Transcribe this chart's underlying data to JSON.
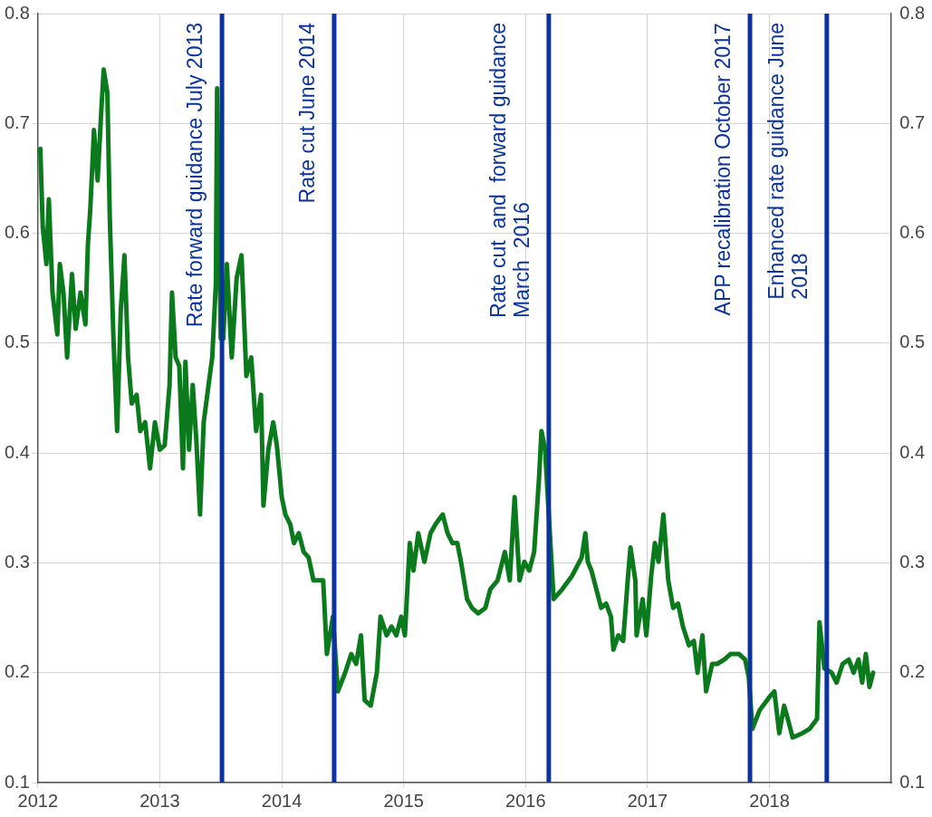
{
  "chart_data": {
    "type": "line",
    "x": [
      2012.02,
      2012.04,
      2012.07,
      2012.09,
      2012.12,
      2012.16,
      2012.18,
      2012.21,
      2012.24,
      2012.28,
      2012.31,
      2012.35,
      2012.39,
      2012.41,
      2012.43,
      2012.46,
      2012.49,
      2012.52,
      2012.54,
      2012.57,
      2012.59,
      2012.62,
      2012.65,
      2012.68,
      2012.71,
      2012.74,
      2012.77,
      2012.81,
      2012.84,
      2012.88,
      2012.92,
      2012.96,
      2013.0,
      2013.04,
      2013.08,
      2013.1,
      2013.13,
      2013.16,
      2013.19,
      2013.21,
      2013.24,
      2013.27,
      2013.3,
      2013.33,
      2013.36,
      2013.4,
      2013.43,
      2013.46,
      2013.47,
      2013.5,
      2013.52,
      2013.55,
      2013.59,
      2013.63,
      2013.67,
      2013.71,
      2013.75,
      2013.79,
      2013.83,
      2013.85,
      2013.89,
      2013.93,
      2013.96,
      2014.0,
      2014.03,
      2014.07,
      2014.1,
      2014.14,
      2014.18,
      2014.22,
      2014.26,
      2014.3,
      2014.34,
      2014.37,
      2014.42,
      2014.46,
      2014.52,
      2014.57,
      2014.61,
      2014.65,
      2014.68,
      2014.73,
      2014.78,
      2014.81,
      2014.86,
      2014.9,
      2014.94,
      2014.98,
      2015.01,
      2015.05,
      2015.08,
      2015.12,
      2015.17,
      2015.22,
      2015.26,
      2015.32,
      2015.36,
      2015.4,
      2015.44,
      2015.47,
      2015.52,
      2015.56,
      2015.61,
      2015.67,
      2015.71,
      2015.77,
      2015.83,
      2015.87,
      2015.91,
      2015.95,
      2015.99,
      2016.03,
      2016.07,
      2016.11,
      2016.13,
      2016.16,
      2016.19,
      2016.23,
      2016.3,
      2016.38,
      2016.46,
      2016.49,
      2016.51,
      2016.54,
      2016.58,
      2016.62,
      2016.66,
      2016.7,
      2016.72,
      2016.76,
      2016.8,
      2016.84,
      2016.86,
      2016.9,
      2016.91,
      2016.96,
      2016.99,
      2017.03,
      2017.06,
      2017.09,
      2017.13,
      2017.17,
      2017.21,
      2017.25,
      2017.29,
      2017.34,
      2017.38,
      2017.41,
      2017.45,
      2017.48,
      2017.53,
      2017.57,
      2017.63,
      2017.68,
      2017.75,
      2017.8,
      2017.83,
      2017.86,
      2017.92,
      2018.0,
      2018.04,
      2018.08,
      2018.12,
      2018.15,
      2018.19,
      2018.27,
      2018.33,
      2018.39,
      2018.41,
      2018.45,
      2018.51,
      2018.55,
      2018.6,
      2018.65,
      2018.69,
      2018.73,
      2018.76,
      2018.79,
      2018.82,
      2018.85
    ],
    "series": [
      {
        "color": "#0b7a1c",
        "values": [
          0.677,
          0.606,
          0.572,
          0.631,
          0.546,
          0.508,
          0.572,
          0.546,
          0.487,
          0.563,
          0.513,
          0.546,
          0.517,
          0.589,
          0.622,
          0.694,
          0.648,
          0.711,
          0.749,
          0.728,
          0.614,
          0.504,
          0.42,
          0.53,
          0.58,
          0.487,
          0.445,
          0.453,
          0.42,
          0.428,
          0.386,
          0.428,
          0.403,
          0.407,
          0.462,
          0.546,
          0.487,
          0.479,
          0.386,
          0.483,
          0.403,
          0.462,
          0.411,
          0.344,
          0.428,
          0.462,
          0.487,
          0.555,
          0.732,
          0.504,
          0.504,
          0.572,
          0.487,
          0.559,
          0.58,
          0.47,
          0.487,
          0.42,
          0.453,
          0.352,
          0.403,
          0.428,
          0.407,
          0.36,
          0.344,
          0.335,
          0.318,
          0.327,
          0.31,
          0.305,
          0.284,
          0.284,
          0.284,
          0.217,
          0.251,
          0.183,
          0.2,
          0.217,
          0.208,
          0.234,
          0.175,
          0.17,
          0.2,
          0.251,
          0.234,
          0.242,
          0.234,
          0.251,
          0.234,
          0.318,
          0.293,
          0.327,
          0.301,
          0.327,
          0.335,
          0.344,
          0.327,
          0.318,
          0.318,
          0.301,
          0.267,
          0.259,
          0.254,
          0.259,
          0.276,
          0.284,
          0.31,
          0.284,
          0.36,
          0.284,
          0.301,
          0.293,
          0.31,
          0.377,
          0.42,
          0.403,
          0.344,
          0.267,
          0.276,
          0.288,
          0.305,
          0.327,
          0.301,
          0.293,
          0.276,
          0.259,
          0.263,
          0.251,
          0.221,
          0.234,
          0.229,
          0.288,
          0.314,
          0.284,
          0.234,
          0.267,
          0.234,
          0.288,
          0.318,
          0.301,
          0.344,
          0.284,
          0.259,
          0.263,
          0.242,
          0.225,
          0.229,
          0.2,
          0.234,
          0.183,
          0.208,
          0.208,
          0.212,
          0.217,
          0.217,
          0.212,
          0.196,
          0.149,
          0.166,
          0.178,
          0.183,
          0.145,
          0.17,
          0.158,
          0.141,
          0.145,
          0.149,
          0.158,
          0.246,
          0.204,
          0.2,
          0.191,
          0.208,
          0.212,
          0.2,
          0.212,
          0.191,
          0.217,
          0.187,
          0.2
        ]
      }
    ],
    "xlim": [
      2012,
      2019
    ],
    "xticks": [
      2012,
      2013,
      2014,
      2015,
      2016,
      2017,
      2018
    ],
    "ylim": [
      0.1,
      0.8
    ],
    "yticks": [
      0.1,
      0.2,
      0.3,
      0.4,
      0.5,
      0.6,
      0.7,
      0.8
    ],
    "y2lim": [
      0.1,
      0.8
    ],
    "y2ticks": [
      0.1,
      0.2,
      0.3,
      0.4,
      0.5,
      0.6,
      0.7,
      0.8
    ],
    "grid": true,
    "legend": false,
    "marker": "none",
    "line_style": "solid",
    "ref_lines": [
      {
        "axis": "x",
        "value": 2013.51,
        "label": "Rate forward guidance July 2013",
        "color": "#0a339e"
      },
      {
        "axis": "x",
        "value": 2014.43,
        "label": "Rate cut June 2014",
        "color": "#0a339e"
      },
      {
        "axis": "x",
        "value": 2016.19,
        "label": "Rate cut  and  forward guidance March  2016",
        "color": "#0a339e"
      },
      {
        "axis": "x",
        "value": 2017.84,
        "label": "APP recalibration October 2017",
        "color": "#0a339e"
      },
      {
        "axis": "x",
        "value": 2018.47,
        "label": "Enhanced rate guidance June 2018",
        "color": "#0a339e"
      }
    ]
  }
}
